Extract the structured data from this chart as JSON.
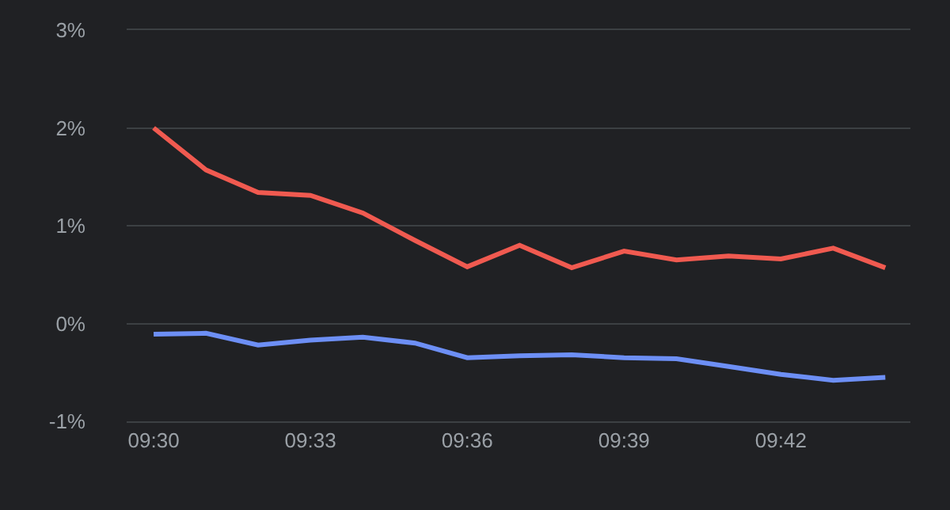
{
  "chart_data": {
    "type": "line",
    "x": [
      9.5,
      9.5167,
      9.5333,
      9.55,
      9.5667,
      9.5833,
      9.6,
      9.6167,
      9.6333,
      9.65,
      9.6667,
      9.6833,
      9.7,
      9.7167,
      9.7333
    ],
    "series": [
      {
        "color": "#f05a50",
        "values": [
          2.0,
          1.57,
          1.34,
          1.31,
          1.13,
          0.85,
          0.58,
          0.8,
          0.57,
          0.74,
          0.65,
          0.69,
          0.66,
          0.77,
          0.57
        ]
      },
      {
        "color": "#6d8ff5",
        "values": [
          -0.11,
          -0.1,
          -0.22,
          -0.17,
          -0.14,
          -0.2,
          -0.35,
          -0.33,
          -0.32,
          -0.35,
          -0.36,
          -0.44,
          -0.52,
          -0.58,
          -0.55
        ]
      }
    ],
    "xlim": [
      9.4914,
      9.7413
    ],
    "xticks": [
      {
        "value": 9.5,
        "label": "09:30"
      },
      {
        "value": 9.55,
        "label": "09:33"
      },
      {
        "value": 9.6,
        "label": "09:36"
      },
      {
        "value": 9.65,
        "label": "09:39"
      },
      {
        "value": 9.7,
        "label": "09:42"
      }
    ],
    "ylim": [
      -1,
      3
    ],
    "yticks": [
      {
        "value": -1,
        "label": "-1%"
      },
      {
        "value": 0,
        "label": "0%"
      },
      {
        "value": 1,
        "label": "1%"
      },
      {
        "value": 2,
        "label": "2%"
      },
      {
        "value": 3,
        "label": "3%"
      }
    ],
    "grid": "y",
    "marker": "none",
    "line_style": "solid"
  }
}
